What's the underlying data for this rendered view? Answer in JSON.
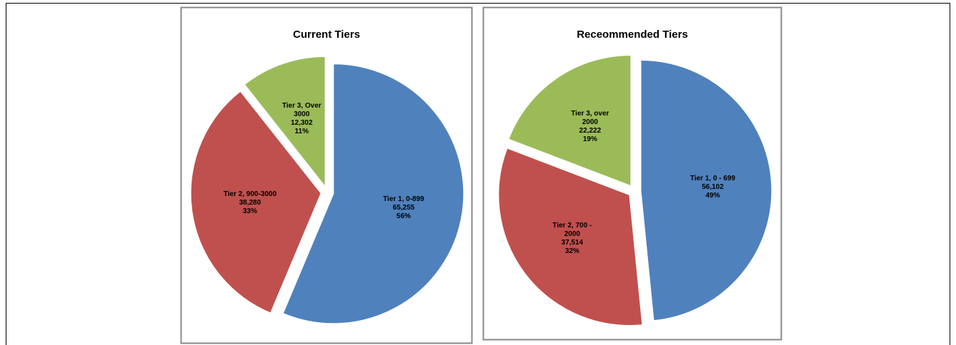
{
  "chart_data": [
    {
      "type": "pie",
      "title": "Current Tiers",
      "categories": [
        "Tier 1, 0-899",
        "Tier 2, 900-3000",
        "Tier 3, Over 3000"
      ],
      "values": [
        65255,
        38280,
        12302
      ],
      "value_labels": [
        "65,255",
        "38,280",
        "12,302"
      ],
      "percent_labels": [
        "56%",
        "33%",
        "11%"
      ],
      "colors": [
        "#4f81bd",
        "#c0504d",
        "#9bbb59"
      ]
    },
    {
      "type": "pie",
      "title": "Receommended Tiers",
      "categories": [
        "Tier 1, 0 - 699",
        "Tier 2, 700 - 2000",
        "Tier 3, over 2000"
      ],
      "values": [
        56102,
        37514,
        22222
      ],
      "value_labels": [
        "56,102",
        "37,514",
        "22,222"
      ],
      "percent_labels": [
        "49%",
        "32%",
        "19%"
      ],
      "colors": [
        "#4f81bd",
        "#c0504d",
        "#9bbb59"
      ]
    }
  ]
}
